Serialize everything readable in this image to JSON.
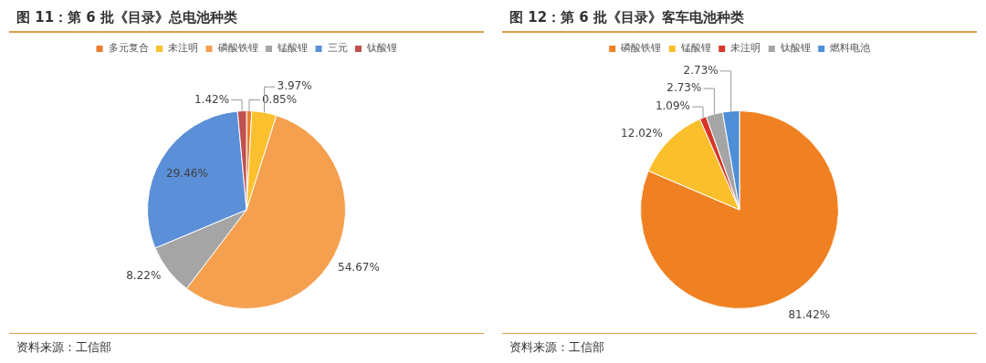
{
  "chart_data": [
    {
      "type": "pie",
      "title": "图 11：第 6 批《目录》总电池种类",
      "categories": [
        "多元复合",
        "未注明",
        "磷酸铁锂",
        "锰酸锂",
        "三元",
        "钛酸锂"
      ],
      "values": [
        0.85,
        3.97,
        54.67,
        8.22,
        29.46,
        1.42
      ],
      "value_labels": [
        "0.85%",
        "3.97%",
        "54.67%",
        "8.22%",
        "29.46%",
        "1.42%"
      ],
      "colors": [
        "#ed7d31",
        "#fbc02d",
        "#f5a04f",
        "#a5a5a5",
        "#5b8fd7",
        "#c0504d"
      ],
      "legend": "top",
      "annotations": [
        "资料来源：工信部"
      ]
    },
    {
      "type": "pie",
      "title": "图 12：第 6 批《目录》客车电池种类",
      "categories": [
        "磷酸铁锂",
        "锰酸锂",
        "未注明",
        "钛酸锂",
        "燃料电池"
      ],
      "values": [
        81.42,
        12.02,
        1.09,
        2.73,
        2.73
      ],
      "value_labels": [
        "81.42%",
        "12.02%",
        "1.09%",
        "2.73%",
        "2.73%"
      ],
      "colors": [
        "#f08122",
        "#fbbf2c",
        "#d9352a",
        "#a5a5a5",
        "#4e8fd8"
      ],
      "legend": "top",
      "annotations": [
        "资料来源：工信部"
      ]
    }
  ]
}
